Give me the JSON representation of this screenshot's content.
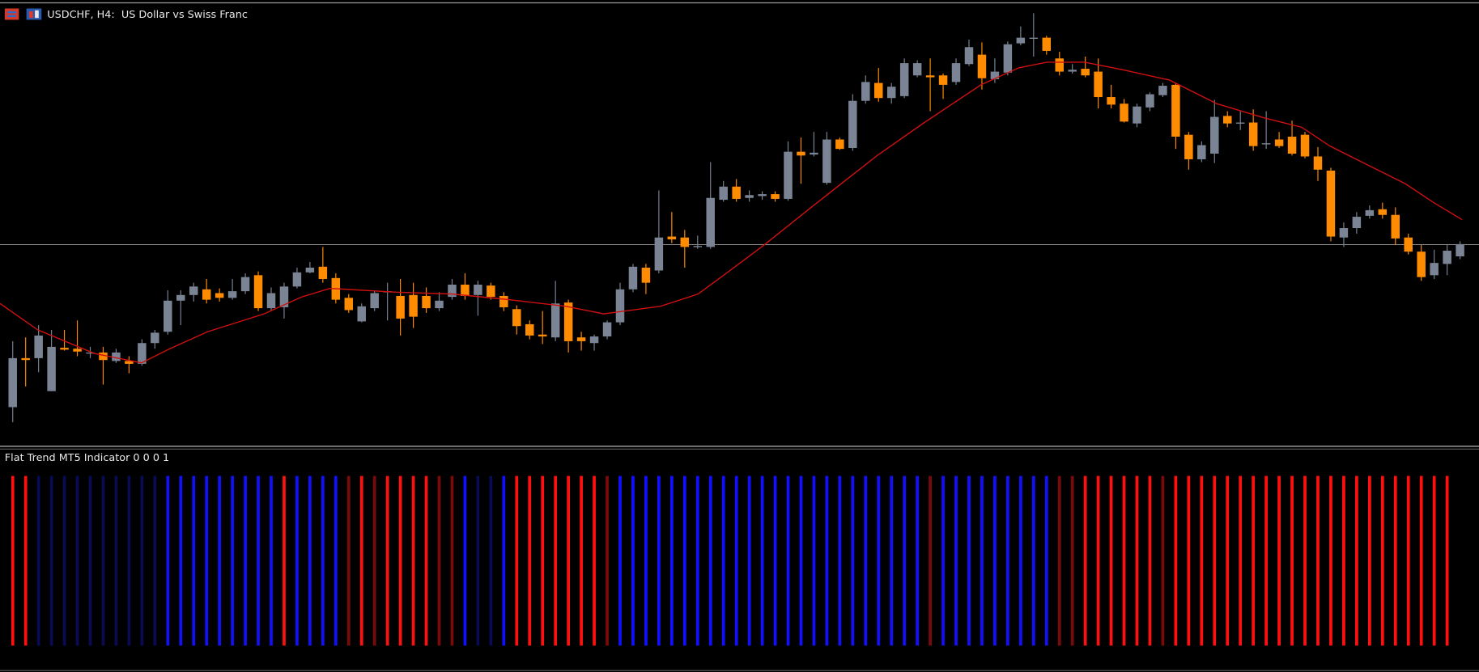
{
  "header": {
    "title": "USDCHF, H4:  US Dollar vs Swiss Franc"
  },
  "indicator": {
    "title": "Flat Trend MT5 Indicator 0 0 0 1"
  }
}
